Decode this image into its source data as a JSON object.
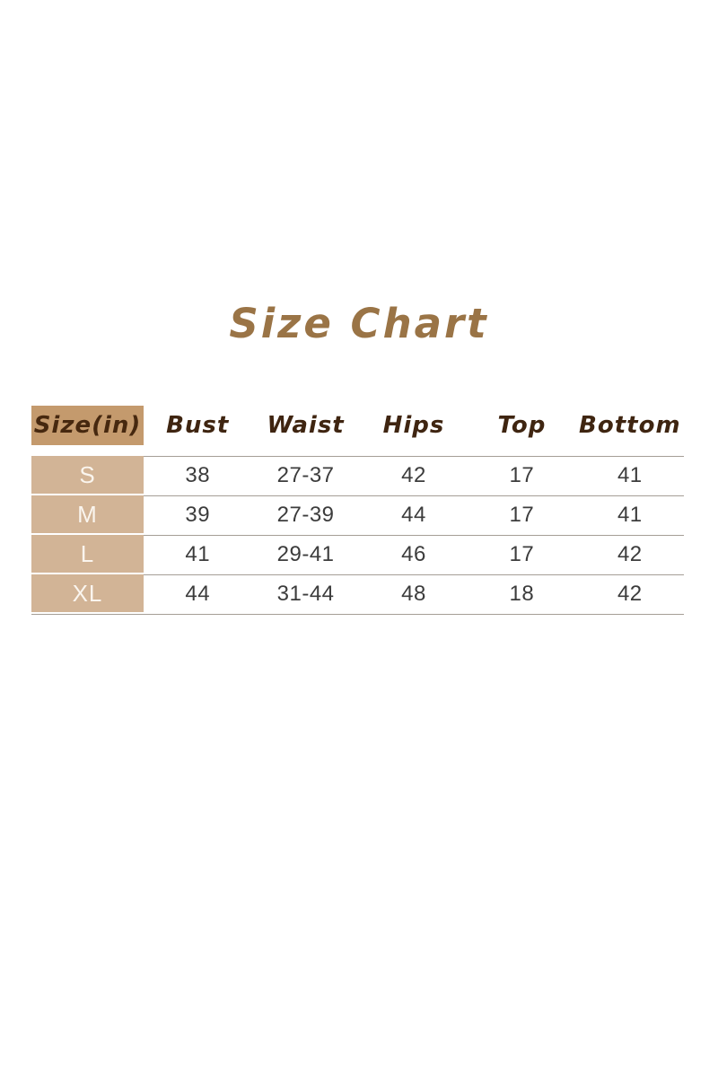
{
  "title": {
    "text": "Size Chart"
  },
  "chart_data": {
    "type": "table",
    "title": "Size Chart",
    "columns": [
      "Size(in)",
      "Bust",
      "Waist",
      "Hips",
      "Top",
      "Bottom"
    ],
    "rows": [
      [
        "S",
        "38",
        "27-37",
        "42",
        "17",
        "41"
      ],
      [
        "M",
        "39",
        "27-39",
        "44",
        "17",
        "41"
      ],
      [
        "L",
        "41",
        "29-41",
        "46",
        "17",
        "42"
      ],
      [
        "XL",
        "44",
        "31-44",
        "48",
        "18",
        "42"
      ]
    ]
  },
  "theme": {
    "title-text": "#9a7446",
    "header-text": "#3f2511",
    "size-header-text": "#46280f",
    "header-bg": "#c49a6d",
    "row-label-bg": "#d2b496",
    "row-label-text": "#faf5ee",
    "value-text": "#3c3c3c",
    "line": "#a59e96",
    "page-bg": "#ffffff"
  }
}
